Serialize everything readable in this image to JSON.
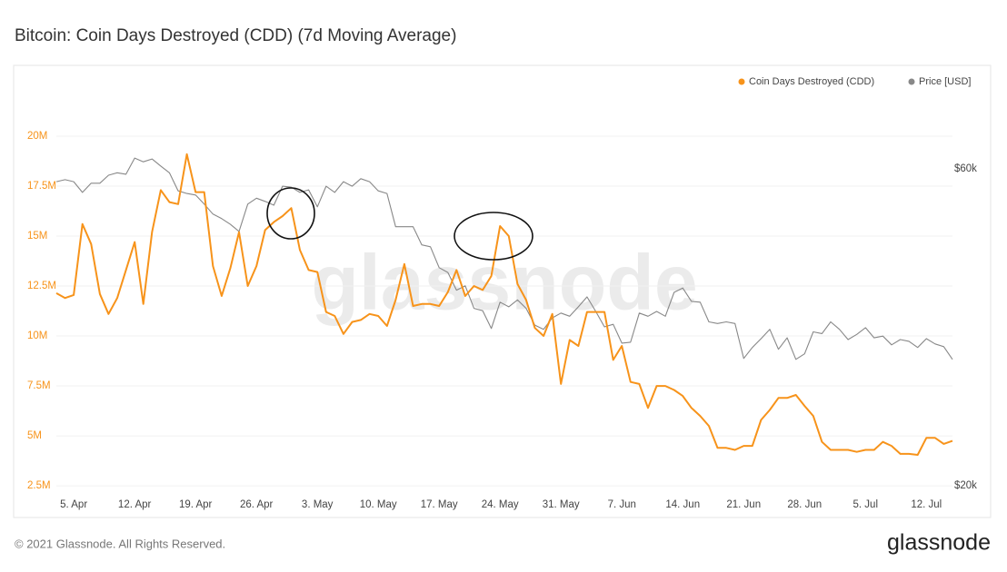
{
  "chart_data": {
    "type": "line",
    "title": "Bitcoin: Coin Days Destroyed (CDD) (7d Moving Average)",
    "watermark": "glassnode",
    "footer": "© 2021 Glassnode. All Rights Reserved.",
    "logo": "glassnode",
    "legend": "top-right",
    "grid": true,
    "y2log": true,
    "x": [
      "3. Apr",
      "4. Apr",
      "5. Apr",
      "6. Apr",
      "7. Apr",
      "8. Apr",
      "9. Apr",
      "10. Apr",
      "11. Apr",
      "12. Apr",
      "13. Apr",
      "14. Apr",
      "15. Apr",
      "16. Apr",
      "17. Apr",
      "18. Apr",
      "19. Apr",
      "20. Apr",
      "21. Apr",
      "22. Apr",
      "23. Apr",
      "24. Apr",
      "25. Apr",
      "26. Apr",
      "27. Apr",
      "28. Apr",
      "29. Apr",
      "30. Apr",
      "1. May",
      "2. May",
      "3. May",
      "4. May",
      "5. May",
      "6. May",
      "7. May",
      "8. May",
      "9. May",
      "10. May",
      "11. May",
      "12. May",
      "13. May",
      "14. May",
      "15. May",
      "16. May",
      "17. May",
      "18. May",
      "19. May",
      "20. May",
      "21. May",
      "22. May",
      "23. May",
      "24. May",
      "25. May",
      "26. May",
      "27. May",
      "28. May",
      "29. May",
      "30. May",
      "31. May",
      "1. Jun",
      "2. Jun",
      "3. Jun",
      "4. Jun",
      "5. Jun",
      "6. Jun",
      "7. Jun",
      "8. Jun",
      "9. Jun",
      "10. Jun",
      "11. Jun",
      "12. Jun",
      "13. Jun",
      "14. Jun",
      "15. Jun",
      "16. Jun",
      "17. Jun",
      "18. Jun",
      "19. Jun",
      "20. Jun",
      "21. Jun",
      "22. Jun",
      "23. Jun",
      "24. Jun",
      "25. Jun",
      "26. Jun",
      "27. Jun",
      "28. Jun",
      "29. Jun",
      "30. Jun",
      "1. Jul",
      "2. Jul",
      "3. Jul",
      "4. Jul",
      "5. Jul",
      "6. Jul",
      "7. Jul",
      "8. Jul",
      "9. Jul",
      "10. Jul",
      "11. Jul",
      "12. Jul",
      "13. Jul",
      "14. Jul",
      "15. Jul"
    ],
    "xticks": [
      "5. Apr",
      "12. Apr",
      "19. Apr",
      "26. Apr",
      "3. May",
      "10. May",
      "17. May",
      "24. May",
      "31. May",
      "7. Jun",
      "14. Jun",
      "21. Jun",
      "28. Jun",
      "5. Jul",
      "12. Jul"
    ],
    "ylim": [
      2050000,
      22270000
    ],
    "yticks": [
      {
        "value": 2500000,
        "label": "2.5M"
      },
      {
        "value": 5000000,
        "label": "5M"
      },
      {
        "value": 7500000,
        "label": "7.5M"
      },
      {
        "value": 10000000,
        "label": "10M"
      },
      {
        "value": 12500000,
        "label": "12.5M"
      },
      {
        "value": 15000000,
        "label": "15M"
      },
      {
        "value": 17500000,
        "label": "17.5M"
      },
      {
        "value": 20000000,
        "label": "20M"
      }
    ],
    "y2lim": [
      19380,
      78660
    ],
    "y2ticks": [
      {
        "value": 20000,
        "label": "$20k"
      },
      {
        "value": 60000,
        "label": "$60k"
      }
    ],
    "series": [
      {
        "name": "Coin Days Destroyed (CDD)",
        "color": "#f7931a",
        "values": [
          12140000,
          11900000,
          12050000,
          15600000,
          14600000,
          12100000,
          11100000,
          11900000,
          13300000,
          14700000,
          11600000,
          15200000,
          17300000,
          16700000,
          16600000,
          19100000,
          17200000,
          17200000,
          13500000,
          12000000,
          13400000,
          15200000,
          12500000,
          13500000,
          15300000,
          15700000,
          16000000,
          16400000,
          14300000,
          13300000,
          13200000,
          11200000,
          11000000,
          10100000,
          10700000,
          10800000,
          11100000,
          11000000,
          10500000,
          11800000,
          13600000,
          11500000,
          11600000,
          11600000,
          11500000,
          12200000,
          13300000,
          12000000,
          12500000,
          12300000,
          13000000,
          15500000,
          15000000,
          12600000,
          11800000,
          10400000,
          10000000,
          11100000,
          7600000,
          9800000,
          9500000,
          11200000,
          11200000,
          11200000,
          8800000,
          9500000,
          7700000,
          7600000,
          6400000,
          7500000,
          7500000,
          7300000,
          7000000,
          6400000,
          6000000,
          5500000,
          4400000,
          4400000,
          4300000,
          4500000,
          4500000,
          5800000,
          6300000,
          6900000,
          6900000,
          7050000,
          6500000,
          6000000,
          4700000,
          4300000,
          4300000,
          4300000,
          4200000,
          4300000,
          4300000,
          4700000,
          4500000,
          4100000,
          4100000,
          4050000,
          4900000,
          4900000,
          4600000,
          4750000
        ]
      },
      {
        "name": "Price [USD]",
        "color": "#888888",
        "axis": "y2",
        "values": [
          57400,
          57800,
          57400,
          55300,
          57100,
          57100,
          58700,
          59200,
          58900,
          62300,
          61500,
          62100,
          60600,
          59200,
          55600,
          55100,
          54800,
          53100,
          51300,
          50500,
          49500,
          48300,
          53100,
          54200,
          53600,
          52900,
          56500,
          56300,
          55300,
          55800,
          52600,
          56500,
          55300,
          57400,
          56500,
          58000,
          57400,
          55600,
          55100,
          49100,
          49100,
          49100,
          46100,
          45800,
          42600,
          41900,
          39400,
          40000,
          37000,
          36700,
          34500,
          37800,
          37200,
          38100,
          37000,
          34900,
          34400,
          35800,
          36400,
          36000,
          37200,
          38500,
          36600,
          34700,
          35000,
          32800,
          32900,
          36400,
          36000,
          36600,
          36000,
          39100,
          39700,
          37900,
          37800,
          35300,
          35100,
          35300,
          35100,
          31100,
          32300,
          33300,
          34400,
          32100,
          33400,
          31000,
          31600,
          34100,
          33900,
          35300,
          34400,
          33200,
          33800,
          34600,
          33400,
          33600,
          32600,
          33200,
          33000,
          32300,
          33300,
          32700,
          32400,
          31000
        ]
      }
    ]
  }
}
